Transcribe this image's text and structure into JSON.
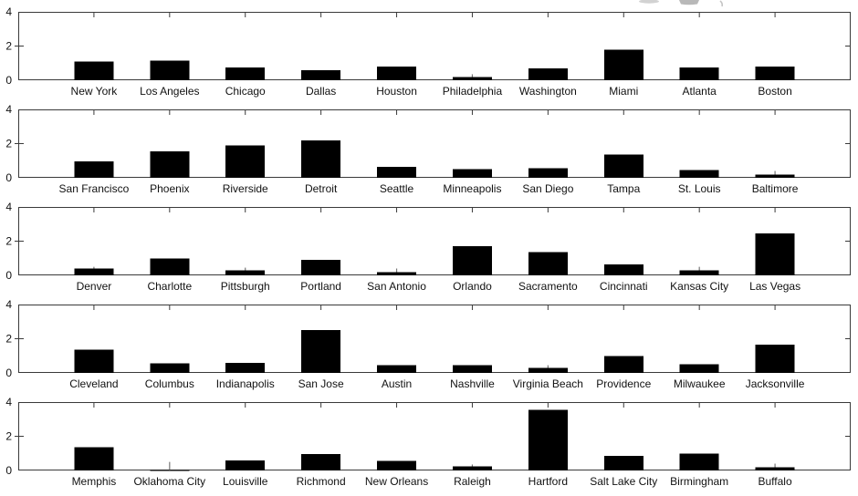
{
  "page": {
    "background": "#ffffff",
    "bar_color": "#000000",
    "axis_color": "#3a3a3a",
    "label_color": "#111111",
    "error_whisker_color": "#777777",
    "artifact_color": "#bdbdbd"
  },
  "screen_artifacts": {
    "description": "faint gray smudges clipped at the very top edge of the screenshot",
    "color": "#bdbdbd"
  },
  "chart_data": [
    {
      "type": "bar",
      "title": "",
      "xlabel": "",
      "ylabel": "",
      "categories": [
        "New York",
        "Los Angeles",
        "Chicago",
        "Dallas",
        "Houston",
        "Philadelphia",
        "Washington",
        "Miami",
        "Atlanta",
        "Boston"
      ],
      "values": [
        1.1,
        1.15,
        0.75,
        0.6,
        0.8,
        0.2,
        0.7,
        1.8,
        0.75,
        0.8
      ],
      "errors_top": [
        null,
        null,
        null,
        null,
        null,
        0.35,
        null,
        null,
        null,
        null
      ],
      "ylim": [
        0,
        4
      ],
      "yticks": [
        0,
        2,
        4
      ],
      "xlim": [
        0,
        11
      ],
      "grid": false,
      "legend": null,
      "bar_color": "#000000"
    },
    {
      "type": "bar",
      "title": "",
      "xlabel": "",
      "ylabel": "",
      "categories": [
        "San Francisco",
        "Phoenix",
        "Riverside",
        "Detroit",
        "Seattle",
        "Minneapolis",
        "San Diego",
        "Tampa",
        "St. Louis",
        "Baltimore"
      ],
      "values": [
        0.95,
        1.55,
        1.9,
        2.2,
        0.65,
        0.5,
        0.55,
        1.35,
        0.45,
        0.2
      ],
      "errors_top": [
        null,
        null,
        null,
        null,
        null,
        null,
        null,
        null,
        null,
        0.4
      ],
      "ylim": [
        0,
        4
      ],
      "yticks": [
        0,
        2,
        4
      ],
      "xlim": [
        0,
        11
      ],
      "grid": false,
      "legend": null,
      "bar_color": "#000000"
    },
    {
      "type": "bar",
      "title": "",
      "xlabel": "",
      "ylabel": "",
      "categories": [
        "Denver",
        "Charlotte",
        "Pittsburgh",
        "Portland",
        "San Antonio",
        "Orlando",
        "Sacramento",
        "Cincinnati",
        "Kansas City",
        "Las Vegas"
      ],
      "values": [
        0.4,
        1.0,
        0.3,
        0.9,
        0.2,
        1.7,
        1.35,
        0.65,
        0.3,
        2.45
      ],
      "errors_top": [
        0.5,
        null,
        0.45,
        null,
        0.4,
        null,
        null,
        null,
        0.5,
        null
      ],
      "ylim": [
        0,
        4
      ],
      "yticks": [
        0,
        2,
        4
      ],
      "xlim": [
        0,
        11
      ],
      "grid": false,
      "legend": null,
      "bar_color": "#000000"
    },
    {
      "type": "bar",
      "title": "",
      "xlabel": "",
      "ylabel": "",
      "categories": [
        "Cleveland",
        "Columbus",
        "Indianapolis",
        "San Jose",
        "Austin",
        "Nashville",
        "Virginia Beach",
        "Providence",
        "Milwaukee",
        "Jacksonville"
      ],
      "values": [
        1.35,
        0.55,
        0.6,
        2.5,
        0.45,
        0.45,
        0.3,
        1.0,
        0.5,
        1.65
      ],
      "errors_top": [
        null,
        null,
        null,
        null,
        null,
        null,
        0.45,
        null,
        null,
        null
      ],
      "ylim": [
        0,
        4
      ],
      "yticks": [
        0,
        2,
        4
      ],
      "xlim": [
        0,
        11
      ],
      "grid": false,
      "legend": null,
      "bar_color": "#000000"
    },
    {
      "type": "bar",
      "title": "",
      "xlabel": "",
      "ylabel": "",
      "categories": [
        "Memphis",
        "Oklahoma City",
        "Louisville",
        "Richmond",
        "New Orleans",
        "Raleigh",
        "Hartford",
        "Salt Lake City",
        "Birmingham",
        "Buffalo"
      ],
      "values": [
        1.35,
        0.03,
        0.6,
        0.95,
        0.55,
        0.25,
        3.55,
        0.85,
        1.0,
        0.2
      ],
      "errors_top": [
        null,
        0.5,
        null,
        null,
        null,
        0.35,
        null,
        null,
        null,
        0.4
      ],
      "ylim": [
        0,
        4
      ],
      "yticks": [
        0,
        2,
        4
      ],
      "xlim": [
        0,
        11
      ],
      "grid": false,
      "legend": null,
      "bar_color": "#000000"
    }
  ]
}
